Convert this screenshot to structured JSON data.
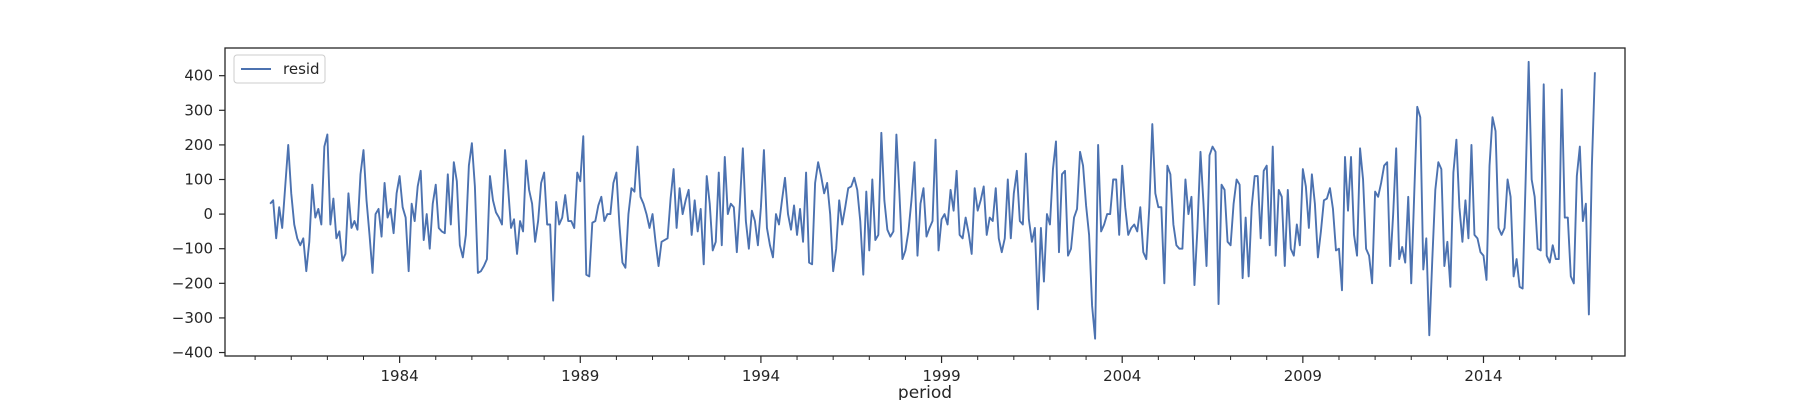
{
  "chart_data": {
    "type": "line",
    "title": "",
    "xlabel": "period",
    "ylabel": "",
    "x_start": "1980-06",
    "x_end": "2017-06",
    "x_frequency": "monthly",
    "xlim": [
      "1979-03",
      "2017-12"
    ],
    "ylim": [
      -410,
      480
    ],
    "x_major_ticks": [
      "1984",
      "1989",
      "1994",
      "1999",
      "2004",
      "2009",
      "2014"
    ],
    "y_ticks": [
      -400,
      -300,
      -200,
      -100,
      0,
      100,
      200,
      300,
      400
    ],
    "y_tick_labels": [
      "−400",
      "−300",
      "−200",
      "−100",
      "0",
      "100",
      "200",
      "300",
      "400"
    ],
    "grid": false,
    "legend": "upper-left",
    "series": [
      {
        "name": "resid",
        "color": "#4c72b0",
        "values": [
          30,
          40,
          -70,
          20,
          -40,
          80,
          200,
          60,
          -30,
          -70,
          -90,
          -70,
          -165,
          -80,
          85,
          -10,
          15,
          -30,
          195,
          230,
          -30,
          45,
          -70,
          -50,
          -135,
          -115,
          60,
          -40,
          -20,
          -45,
          115,
          185,
          40,
          -60,
          -170,
          0,
          15,
          -65,
          90,
          -10,
          15,
          -55,
          60,
          110,
          20,
          -10,
          -165,
          30,
          -20,
          80,
          125,
          -75,
          0,
          -100,
          30,
          85,
          -40,
          -50,
          -55,
          115,
          -30,
          150,
          95,
          -90,
          -125,
          -60,
          140,
          205,
          80,
          -170,
          -165,
          -150,
          -130,
          110,
          40,
          5,
          -10,
          -30,
          185,
          80,
          -40,
          -15,
          -115,
          -20,
          -50,
          155,
          70,
          30,
          -80,
          -20,
          90,
          120,
          -30,
          -30,
          -250,
          35,
          -30,
          -10,
          55,
          -20,
          -20,
          -40,
          120,
          95,
          225,
          -175,
          -180,
          -25,
          -20,
          25,
          50,
          -20,
          0,
          0,
          90,
          120,
          -30,
          -140,
          -155,
          0,
          75,
          65,
          195,
          50,
          30,
          0,
          -40,
          0,
          -80,
          -150,
          -80,
          -75,
          -70,
          45,
          130,
          -40,
          75,
          0,
          40,
          70,
          -60,
          40,
          -50,
          15,
          -145,
          110,
          30,
          -105,
          -80,
          120,
          -90,
          165,
          0,
          30,
          20,
          -110,
          30,
          190,
          -20,
          -100,
          10,
          -20,
          -90,
          20,
          185,
          -40,
          -90,
          -125,
          0,
          -30,
          40,
          105,
          0,
          -45,
          25,
          -60,
          15,
          -80,
          120,
          -140,
          -145,
          90,
          150,
          110,
          60,
          90,
          0,
          -165,
          -100,
          40,
          -30,
          20,
          75,
          80,
          105,
          70,
          -20,
          -175,
          65,
          -105,
          100,
          -75,
          -60,
          235,
          40,
          -45,
          -65,
          -50,
          230,
          60,
          -130,
          -105,
          -50,
          40,
          150,
          -120,
          30,
          75,
          -65,
          -40,
          -20,
          215,
          -105,
          -15,
          0,
          -30,
          70,
          10,
          125,
          -60,
          -70,
          -10,
          -55,
          -115,
          75,
          10,
          40,
          80,
          -60,
          -10,
          -20,
          75,
          -70,
          -110,
          -70,
          100,
          -70,
          60,
          125,
          -20,
          -30,
          175,
          -15,
          -80,
          -40,
          -275,
          -40,
          -195,
          0,
          -30,
          130,
          210,
          -110,
          115,
          125,
          -120,
          -100,
          -10,
          15,
          180,
          140,
          25,
          -60,
          -265,
          -360,
          200,
          -50,
          -30,
          0,
          0,
          100,
          100,
          -60,
          140,
          20,
          -60,
          -40,
          -30,
          -50,
          20,
          -110,
          -130,
          20,
          260,
          60,
          20,
          20,
          -200,
          140,
          115,
          -30,
          -90,
          -100,
          -100,
          100,
          0,
          50,
          -205,
          -40,
          180,
          30,
          -150,
          170,
          195,
          180,
          -260,
          85,
          70,
          -80,
          -90,
          30,
          100,
          85,
          -185,
          -10,
          -180,
          20,
          110,
          110,
          -70,
          125,
          140,
          -90,
          195,
          -120,
          70,
          50,
          -150,
          70,
          -100,
          -120,
          -30,
          -90,
          130,
          80,
          -40,
          115,
          30,
          -125,
          -50,
          40,
          45,
          75,
          15,
          -105,
          -100,
          -220,
          165,
          10,
          165,
          -60,
          -120,
          190,
          100,
          -100,
          -120,
          -200,
          65,
          50,
          90,
          140,
          150,
          -150,
          0,
          190,
          -130,
          -95,
          -140,
          50,
          -200,
          60,
          310,
          280,
          -160,
          -70,
          -350,
          -130,
          70,
          150,
          130,
          -150,
          -80,
          -210,
          120,
          215,
          20,
          -80,
          40,
          -70,
          200,
          -60,
          -70,
          -110,
          -120,
          -190,
          140,
          280,
          240,
          -40,
          -60,
          -40,
          100,
          50,
          -180,
          -130,
          -210,
          -215,
          100,
          440,
          100,
          50,
          -100,
          -105,
          375,
          -120,
          -140,
          -90,
          -130,
          -130,
          360,
          -10,
          -10,
          -180,
          -200,
          110,
          195,
          -20,
          30,
          -290,
          140,
          410
        ]
      }
    ]
  }
}
